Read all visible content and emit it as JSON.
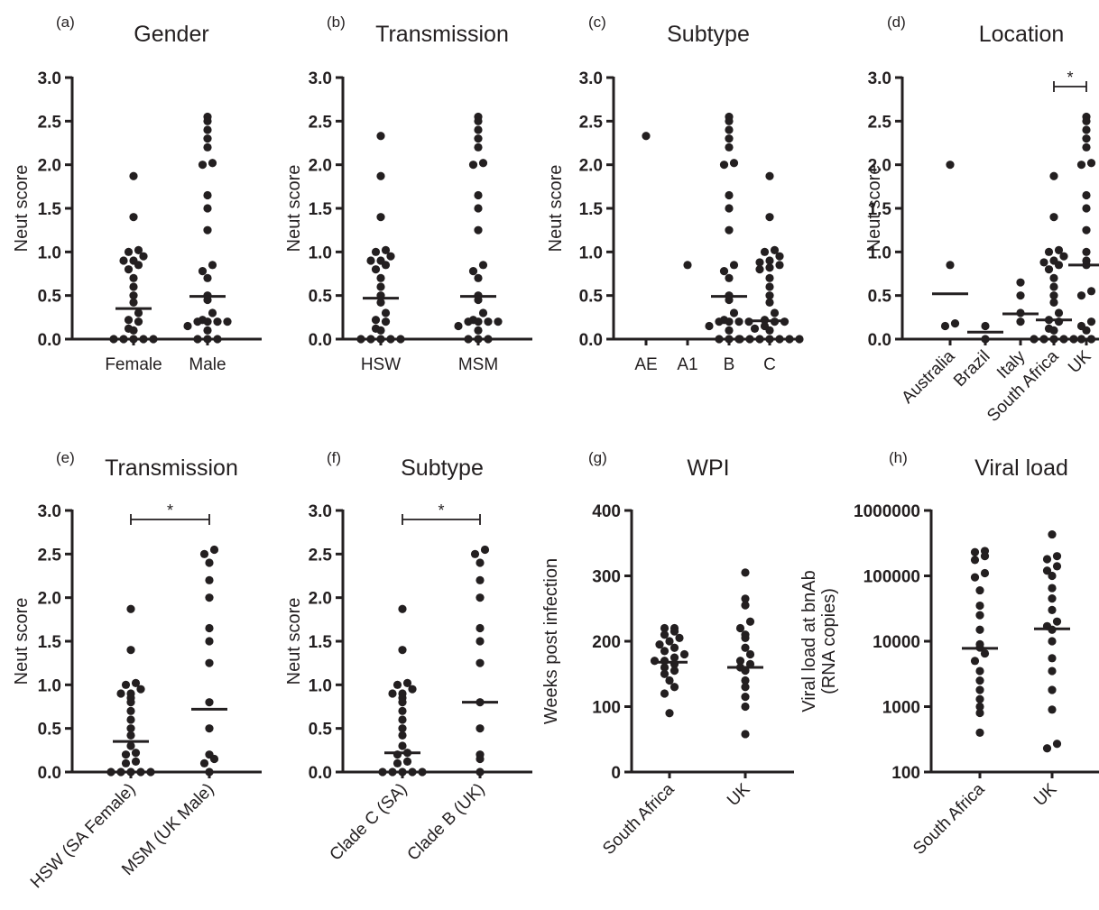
{
  "chart_data": [
    {
      "type": "scatter",
      "panel": "(a)",
      "title": "Gender",
      "ylabel": "Neut score",
      "ylim": [
        0,
        3
      ],
      "yticks": [
        "0.0",
        "0.5",
        "1.0",
        "1.5",
        "2.0",
        "2.5",
        "3.0"
      ],
      "categories": [
        "Female",
        "Male"
      ],
      "series": [
        {
          "values": [
            0,
            0,
            0,
            0,
            0,
            0.1,
            0.12,
            0.2,
            0.22,
            0.3,
            0.42,
            0.5,
            0.6,
            0.7,
            0.8,
            0.85,
            0.9,
            0.9,
            0.95,
            1.0,
            1.02,
            1.4,
            1.87
          ],
          "median": 0.35
        },
        {
          "values": [
            0,
            0,
            0,
            0.1,
            0.15,
            0.2,
            0.2,
            0.2,
            0.2,
            0.22,
            0.3,
            0.45,
            0.5,
            0.7,
            0.78,
            0.85,
            1.25,
            1.5,
            1.65,
            2.0,
            2.02,
            2.2,
            2.3,
            2.4,
            2.5,
            2.55
          ],
          "median": 0.49
        }
      ]
    },
    {
      "type": "scatter",
      "panel": "(b)",
      "title": "Transmission",
      "ylabel": "Neut score",
      "ylim": [
        0,
        3
      ],
      "yticks": [
        "0.0",
        "0.5",
        "1.0",
        "1.5",
        "2.0",
        "2.5",
        "3.0"
      ],
      "categories": [
        "HSW",
        "MSM"
      ],
      "series": [
        {
          "values": [
            0,
            0,
            0,
            0,
            0,
            0.1,
            0.12,
            0.2,
            0.22,
            0.3,
            0.42,
            0.5,
            0.6,
            0.7,
            0.8,
            0.85,
            0.9,
            0.9,
            0.95,
            1.0,
            1.02,
            1.4,
            1.87,
            2.33
          ],
          "median": 0.47
        },
        {
          "values": [
            0,
            0,
            0,
            0.1,
            0.15,
            0.2,
            0.2,
            0.2,
            0.2,
            0.22,
            0.3,
            0.45,
            0.5,
            0.7,
            0.78,
            0.85,
            1.25,
            1.5,
            1.65,
            2.0,
            2.02,
            2.2,
            2.3,
            2.4,
            2.5,
            2.55
          ],
          "median": 0.49
        }
      ]
    },
    {
      "type": "scatter",
      "panel": "(c)",
      "title": "Subtype",
      "ylabel": "Neut score",
      "ylim": [
        0,
        3
      ],
      "yticks": [
        "0.0",
        "0.5",
        "1.0",
        "1.5",
        "2.0",
        "2.5",
        "3.0"
      ],
      "categories": [
        "AE",
        "A1",
        "B",
        "C"
      ],
      "series": [
        {
          "values": [
            2.33
          ]
        },
        {
          "values": [
            0.85
          ]
        },
        {
          "values": [
            0,
            0,
            0,
            0.1,
            0.15,
            0.2,
            0.2,
            0.2,
            0.2,
            0.22,
            0.3,
            0.45,
            0.5,
            0.7,
            0.78,
            0.85,
            1.25,
            1.5,
            1.65,
            2.0,
            2.02,
            2.2,
            2.3,
            2.4,
            2.5,
            2.55
          ],
          "median": 0.49
        },
        {
          "values": [
            0,
            0,
            0,
            0,
            0,
            0,
            0,
            0.1,
            0.12,
            0.15,
            0.2,
            0.2,
            0.22,
            0.3,
            0.42,
            0.5,
            0.6,
            0.7,
            0.8,
            0.82,
            0.85,
            0.88,
            0.9,
            0.95,
            1.0,
            1.02,
            1.4,
            1.87
          ],
          "median": 0.21
        }
      ]
    },
    {
      "type": "scatter",
      "panel": "(d)",
      "title": "Location",
      "ylabel": "Neut score",
      "ylim": [
        0,
        3
      ],
      "yticks": [
        "0.0",
        "0.5",
        "1.0",
        "1.5",
        "2.0",
        "2.5",
        "3.0"
      ],
      "categories": [
        "Australia",
        "Brazil",
        "Italy",
        "South Africa",
        "UK"
      ],
      "series": [
        {
          "values": [
            0.15,
            0.18,
            0.85,
            2.0
          ],
          "median": 0.52
        },
        {
          "values": [
            0.0,
            0.15
          ],
          "median": 0.08
        },
        {
          "values": [
            0.2,
            0.3,
            0.5,
            0.65
          ],
          "median": 0.29
        },
        {
          "values": [
            0,
            0,
            0,
            0,
            0,
            0.1,
            0.12,
            0.2,
            0.22,
            0.3,
            0.42,
            0.5,
            0.6,
            0.7,
            0.8,
            0.85,
            0.88,
            0.9,
            0.95,
            1.0,
            1.02,
            1.4,
            1.87
          ],
          "median": 0.22
        },
        {
          "values": [
            0,
            0,
            0.1,
            0.15,
            0.2,
            0.5,
            0.55,
            0.85,
            0.9,
            1.0,
            1.25,
            1.5,
            1.65,
            2.0,
            2.02,
            2.2,
            2.3,
            2.4,
            2.5,
            2.55
          ],
          "median": 0.85
        }
      ],
      "annotations": [
        {
          "text": "*",
          "between": [
            "South Africa",
            "UK"
          ]
        }
      ]
    },
    {
      "type": "scatter",
      "panel": "(e)",
      "title": "Transmission",
      "ylabel": "Neut score",
      "ylim": [
        0,
        3
      ],
      "yticks": [
        "0.0",
        "0.5",
        "1.0",
        "1.5",
        "2.0",
        "2.5",
        "3.0"
      ],
      "categories": [
        "HSW (SA Female)",
        "MSM (UK Male)"
      ],
      "series": [
        {
          "values": [
            0,
            0,
            0,
            0,
            0,
            0.1,
            0.12,
            0.2,
            0.22,
            0.3,
            0.42,
            0.5,
            0.6,
            0.7,
            0.8,
            0.85,
            0.9,
            0.9,
            0.95,
            1.0,
            1.02,
            1.4,
            1.87
          ],
          "median": 0.35
        },
        {
          "values": [
            0,
            0.1,
            0.15,
            0.2,
            0.5,
            0.8,
            1.25,
            1.5,
            1.65,
            2.0,
            2.2,
            2.4,
            2.5,
            2.55
          ],
          "median": 0.72
        }
      ],
      "annotations": [
        {
          "text": "*",
          "between": [
            "HSW (SA Female)",
            "MSM (UK Male)"
          ]
        }
      ]
    },
    {
      "type": "scatter",
      "panel": "(f)",
      "title": "Subtype",
      "ylabel": "Neut score",
      "ylim": [
        0,
        3
      ],
      "yticks": [
        "0.0",
        "0.5",
        "1.0",
        "1.5",
        "2.0",
        "2.5",
        "3.0"
      ],
      "categories": [
        "Clade C (SA)",
        "Clade B (UK)"
      ],
      "series": [
        {
          "values": [
            0,
            0,
            0,
            0,
            0,
            0.1,
            0.12,
            0.2,
            0.22,
            0.3,
            0.42,
            0.5,
            0.6,
            0.7,
            0.8,
            0.85,
            0.9,
            0.9,
            0.95,
            1.0,
            1.02,
            1.4,
            1.87
          ],
          "median": 0.22
        },
        {
          "values": [
            0,
            0.15,
            0.2,
            0.5,
            0.8,
            1.25,
            1.5,
            1.65,
            2.0,
            2.2,
            2.4,
            2.5,
            2.55
          ],
          "median": 0.8
        }
      ],
      "annotations": [
        {
          "text": "*",
          "between": [
            "Clade C (SA)",
            "Clade B (UK)"
          ]
        }
      ]
    },
    {
      "type": "scatter",
      "panel": "(g)",
      "title": "WPI",
      "ylabel": "Weeks post infection",
      "ylim": [
        0,
        400
      ],
      "yticks": [
        "0",
        "100",
        "200",
        "300",
        "400"
      ],
      "categories": [
        "South Africa",
        "UK"
      ],
      "series": [
        {
          "values": [
            90,
            120,
            130,
            140,
            150,
            155,
            160,
            165,
            170,
            170,
            175,
            180,
            185,
            190,
            195,
            200,
            205,
            210,
            215,
            220,
            220
          ],
          "median": 168
        },
        {
          "values": [
            58,
            100,
            115,
            130,
            140,
            155,
            160,
            165,
            170,
            180,
            190,
            205,
            210,
            220,
            230,
            255,
            265,
            305
          ],
          "median": 160
        }
      ]
    },
    {
      "type": "scatter",
      "panel": "(h)",
      "title": "Viral load",
      "ylabel": "Viral load at bnAb (RNA copies)",
      "yscale": "log",
      "ylim": [
        100,
        1000000
      ],
      "yticks": [
        "100",
        "1000",
        "10000",
        "100000",
        "1000000"
      ],
      "categories": [
        "South Africa",
        "UK"
      ],
      "series": [
        {
          "values": [
            400,
            800,
            1000,
            1300,
            1800,
            2500,
            3500,
            5000,
            6500,
            8000,
            9000,
            15000,
            25000,
            35000,
            60000,
            95000,
            110000,
            175000,
            200000,
            230000,
            240000
          ],
          "median": 7800
        },
        {
          "values": [
            230,
            270,
            900,
            1800,
            3500,
            5500,
            10000,
            15000,
            17000,
            20000,
            30000,
            45000,
            65000,
            100000,
            120000,
            140000,
            180000,
            200000,
            430000
          ],
          "median": 15500
        }
      ]
    }
  ]
}
